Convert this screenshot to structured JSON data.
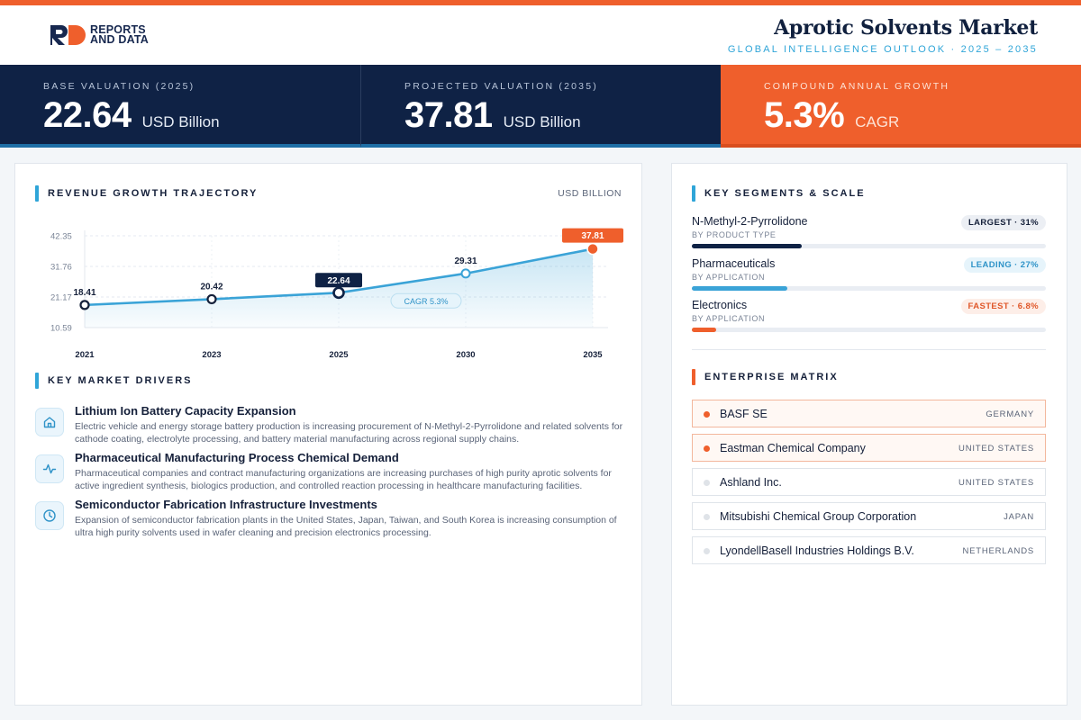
{
  "brand": {
    "line1": "REPORTS",
    "line2": "AND DATA",
    "mark": "RD"
  },
  "header": {
    "title": "Aprotic Solvents Market",
    "subtitle": "GLOBAL INTELLIGENCE OUTLOOK · 2025 – 2035"
  },
  "kpis": [
    {
      "label": "BASE VALUATION (2025)",
      "value": "22.64",
      "unit": "USD Billion"
    },
    {
      "label": "PROJECTED VALUATION (2035)",
      "value": "37.81",
      "unit": "USD Billion"
    },
    {
      "label": "COMPOUND ANNUAL GROWTH",
      "value": "5.3%",
      "unit": "CAGR"
    }
  ],
  "revenue": {
    "title": "REVENUE GROWTH TRAJECTORY",
    "unit": "USD BILLION",
    "cagr_label": "CAGR 5.3%"
  },
  "chart_data": {
    "type": "area",
    "categories": [
      "2021",
      "2023",
      "2025",
      "2030",
      "2035"
    ],
    "values": [
      18.41,
      20.42,
      22.64,
      29.31,
      37.81
    ],
    "labels": [
      "18.41",
      "20.42",
      "22.64",
      "29.31",
      "37.81"
    ],
    "yticks": [
      "42.35",
      "31.76",
      "21.17",
      "10.59"
    ],
    "ytick_values": [
      42.35,
      31.76,
      21.17,
      10.59
    ],
    "ylim": [
      10.59,
      42.35
    ],
    "grid": true,
    "colors": {
      "line": "#3aa3d7",
      "highlight_base": "#0f2245",
      "highlight_end": "#ef5f2c"
    }
  },
  "drivers": {
    "title": "KEY MARKET DRIVERS",
    "items": [
      {
        "title": "Lithium Ion Battery Capacity Expansion",
        "desc": "Electric vehicle and energy storage battery production is increasing procurement of N-Methyl-2-Pyrrolidone and related solvents for cathode coating, electrolyte processing, and battery material manufacturing across regional supply chains.",
        "icon": "home-icon"
      },
      {
        "title": "Pharmaceutical Manufacturing Process Chemical Demand",
        "desc": "Pharmaceutical companies and contract manufacturing organizations are increasing purchases of high purity aprotic solvents for active ingredient synthesis, biologics production, and controlled reaction processing in healthcare manufacturing facilities.",
        "icon": "activity-icon"
      },
      {
        "title": "Semiconductor Fabrication Infrastructure Investments",
        "desc": "Expansion of semiconductor fabrication plants in the United States, Japan, Taiwan, and South Korea is increasing consumption of ultra high purity solvents used in wafer cleaning and precision electronics processing.",
        "icon": "clock-icon"
      }
    ]
  },
  "segments": {
    "title": "KEY SEGMENTS & SCALE",
    "items": [
      {
        "name": "N-Methyl-2-Pyrrolidone",
        "sub": "BY PRODUCT TYPE",
        "badge": "LARGEST · 31%",
        "share": 0.31,
        "color": "#0f2245",
        "badge_bg": "#eceff4",
        "badge_fg": "#15203a"
      },
      {
        "name": "Pharmaceuticals",
        "sub": "BY APPLICATION",
        "badge": "LEADING · 27%",
        "share": 0.27,
        "color": "#3aa3d7",
        "badge_bg": "#e6f4fb",
        "badge_fg": "#2f93c8"
      },
      {
        "name": "Electronics",
        "sub": "BY APPLICATION",
        "badge": "FASTEST · 6.8%",
        "share": 0.068,
        "color": "#ef5f2c",
        "badge_bg": "#fdeee8",
        "badge_fg": "#e0582a"
      }
    ]
  },
  "enterprise": {
    "title": "ENTERPRISE MATRIX",
    "items": [
      {
        "name": "BASF SE",
        "country": "GERMANY",
        "highlight": true
      },
      {
        "name": "Eastman Chemical Company",
        "country": "UNITED STATES",
        "highlight": true
      },
      {
        "name": "Ashland Inc.",
        "country": "UNITED STATES",
        "highlight": false
      },
      {
        "name": "Mitsubishi Chemical Group Corporation",
        "country": "JAPAN",
        "highlight": false
      },
      {
        "name": "LyondellBasell Industries Holdings B.V.",
        "country": "NETHERLANDS",
        "highlight": false
      }
    ]
  }
}
